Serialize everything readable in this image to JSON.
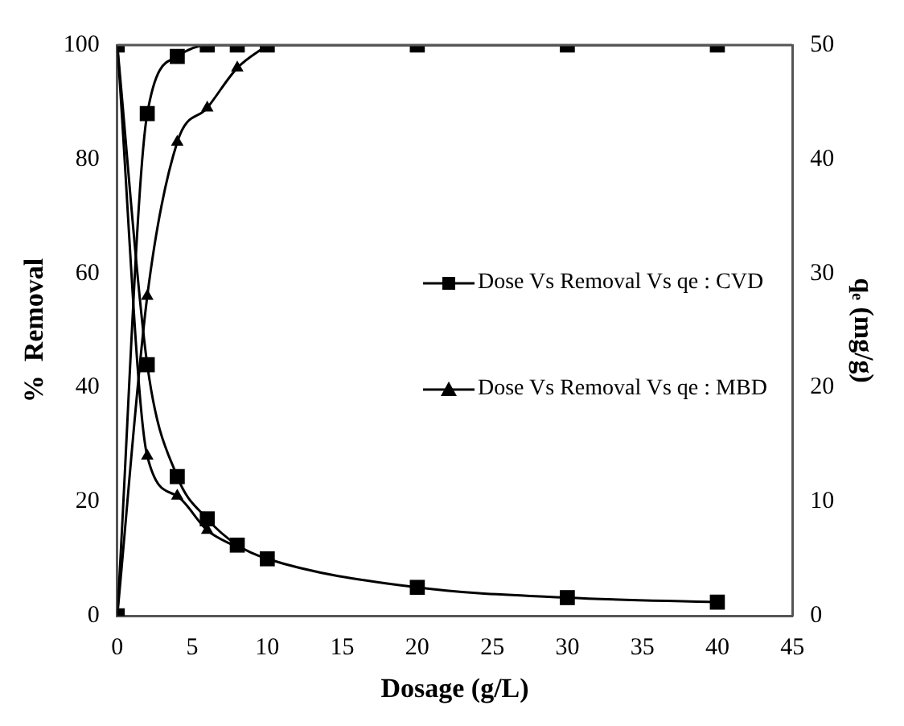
{
  "chart_data": {
    "type": "line",
    "xlabel": "Dosage (g/L)",
    "ylabel": "%  Removal",
    "y2label": "qₑ (mg/g)",
    "xlim": [
      0,
      45
    ],
    "xticks": [
      0,
      5,
      10,
      15,
      20,
      25,
      30,
      35,
      40,
      45
    ],
    "ylim": [
      0,
      100
    ],
    "yticks": [
      0,
      20,
      40,
      60,
      80,
      100
    ],
    "y2lim": [
      0,
      50
    ],
    "y2ticks": [
      0,
      10,
      20,
      30,
      40,
      50
    ],
    "x": [
      0,
      2,
      4,
      6,
      8,
      10,
      20,
      30,
      40
    ],
    "legend": "right",
    "grid": false,
    "series": [
      {
        "name": "Dose Vs Removal Vs qe : CVD",
        "color": "#000000",
        "marker": "square",
        "values": [
          0,
          88,
          98,
          100,
          100,
          100,
          100,
          100,
          100
        ]
      },
      {
        "name": "Dose Vs Removal Vs qe : MBD",
        "color": "#000000",
        "marker": "triangle",
        "x": [
          0,
          2,
          4,
          6,
          8,
          10
        ],
        "values": [
          0,
          56,
          83,
          89,
          96,
          100
        ]
      },
      {
        "color": "#000000",
        "marker": "square",
        "axis": "y2",
        "values": [
          50,
          22,
          12.2,
          8.5,
          6.2,
          5,
          2.5,
          1.6,
          1.2
        ]
      },
      {
        "color": "#000000",
        "marker": "triangle",
        "axis": "y2",
        "x": [
          0,
          2,
          4,
          6,
          8
        ],
        "values": [
          50,
          14,
          10.5,
          7.5,
          6
        ]
      }
    ]
  }
}
